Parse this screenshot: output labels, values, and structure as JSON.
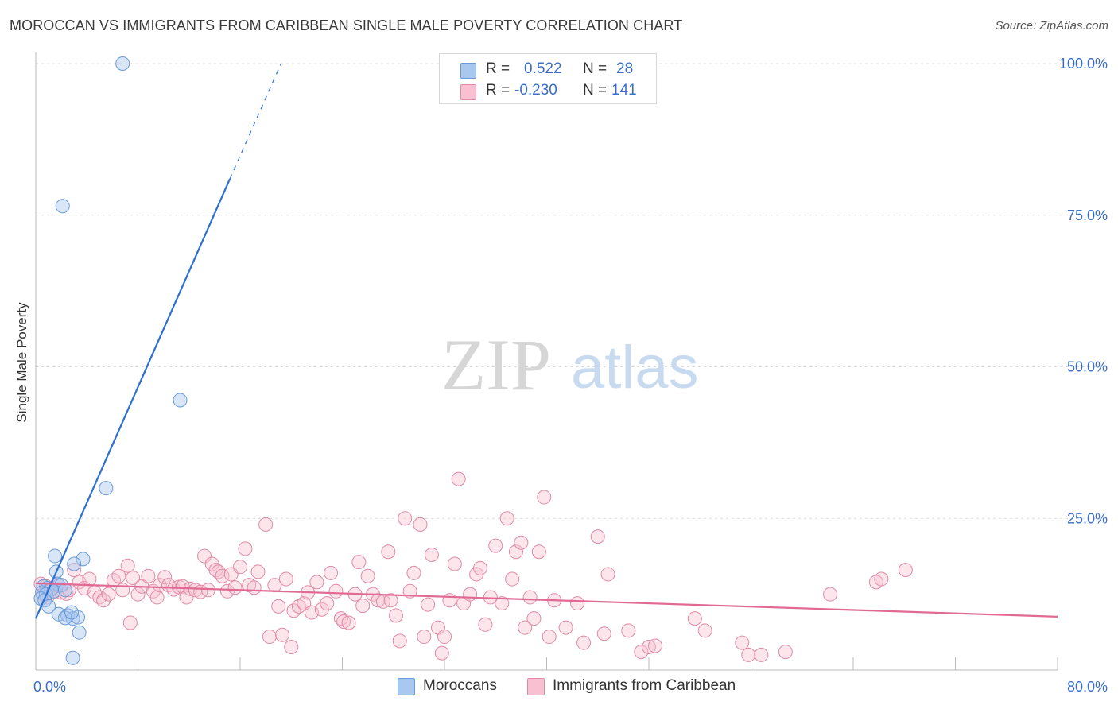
{
  "header": {
    "title": "MOROCCAN VS IMMIGRANTS FROM CARIBBEAN SINGLE MALE POVERTY CORRELATION CHART",
    "source": "Source: ZipAtlas.com"
  },
  "watermark": {
    "part1": "ZIP",
    "part2": "atlas"
  },
  "legend": {
    "rows": [
      {
        "r_label": "R =",
        "r_value": "0.522",
        "n_label": "N =",
        "n_value": "28",
        "color": "#a8c8f0",
        "border": "#6a9ad8"
      },
      {
        "r_label": "R =",
        "r_value": "-0.230",
        "n_label": "N =",
        "n_value": "141",
        "color": "#f8c0d0",
        "border": "#e08aa8"
      }
    ]
  },
  "bottom_legend": {
    "items": [
      {
        "label": "Moroccans",
        "color": "#a8c8f0",
        "border": "#6a9ad8"
      },
      {
        "label": "Immigrants from Caribbean",
        "color": "#f8c0d0",
        "border": "#e08aa8"
      }
    ]
  },
  "chart_data": {
    "type": "scatter",
    "title": "MOROCCAN VS IMMIGRANTS FROM CARIBBEAN SINGLE MALE POVERTY CORRELATION CHART",
    "xlabel": "",
    "ylabel": "Single Male Poverty",
    "xlim": [
      0,
      80
    ],
    "ylim": [
      0,
      100
    ],
    "x_tick_labels": {
      "0": "0.0%",
      "80": "80.0%"
    },
    "y_tick_labels": {
      "25": "25.0%",
      "50": "50.0%",
      "75": "75.0%",
      "100": "100.0%"
    },
    "y_grid": [
      25,
      50,
      75,
      100
    ],
    "x_minor_ticks": [
      8,
      16,
      24,
      32,
      40,
      48,
      56,
      64,
      72,
      80
    ],
    "series": [
      {
        "name": "Moroccans",
        "color": "#6a9ad8",
        "fill": "rgba(168,200,240,0.45)",
        "line_color": "#2f6fd0",
        "trend": {
          "x0": 0,
          "y0": 8.5,
          "x1": 15.2,
          "y1": 81,
          "dashed_to_x": 19.2,
          "dashed_to_y": 100
        },
        "points": [
          [
            6.8,
            100
          ],
          [
            2.1,
            76.5
          ],
          [
            11.3,
            44.5
          ],
          [
            5.5,
            30
          ],
          [
            1.5,
            18.8
          ],
          [
            3.7,
            18.3
          ],
          [
            3.0,
            17.5
          ],
          [
            1.6,
            16.2
          ],
          [
            1.7,
            14.2
          ],
          [
            2.0,
            14.0
          ],
          [
            0.6,
            13.8
          ],
          [
            0.9,
            13.5
          ],
          [
            1.2,
            13.3
          ],
          [
            0.5,
            12.8
          ],
          [
            0.8,
            12.5
          ],
          [
            1.4,
            13.0
          ],
          [
            2.3,
            13.2
          ],
          [
            0.4,
            11.8
          ],
          [
            0.7,
            11.5
          ],
          [
            1.0,
            10.5
          ],
          [
            1.8,
            9.2
          ],
          [
            2.5,
            9.0
          ],
          [
            2.9,
            8.5
          ],
          [
            2.3,
            8.6
          ],
          [
            3.3,
            8.7
          ],
          [
            2.8,
            9.5
          ],
          [
            3.4,
            6.2
          ],
          [
            2.9,
            2.0
          ]
        ]
      },
      {
        "name": "Immigrants from Caribbean",
        "color": "#e08aa8",
        "fill": "rgba(248,192,208,0.4)",
        "line_color": "#e06a94",
        "trend": {
          "x0": 0,
          "y0": 14.3,
          "x1": 80,
          "y1": 8.8
        },
        "points": [
          [
            0.4,
            14.2
          ],
          [
            0.8,
            13.8
          ],
          [
            1.1,
            13.3
          ],
          [
            1.5,
            13.0
          ],
          [
            2.0,
            12.8
          ],
          [
            2.4,
            12.6
          ],
          [
            0.6,
            12.5
          ],
          [
            1.3,
            13.5
          ],
          [
            1.8,
            13.9
          ],
          [
            2.6,
            13.2
          ],
          [
            3.0,
            16.5
          ],
          [
            3.4,
            14.5
          ],
          [
            3.8,
            13.5
          ],
          [
            4.2,
            15.0
          ],
          [
            4.6,
            12.8
          ],
          [
            5.0,
            12.0
          ],
          [
            5.3,
            11.5
          ],
          [
            5.7,
            12.5
          ],
          [
            6.1,
            14.8
          ],
          [
            6.5,
            15.5
          ],
          [
            6.8,
            13.2
          ],
          [
            7.2,
            17.2
          ],
          [
            7.6,
            15.2
          ],
          [
            7.4,
            7.8
          ],
          [
            8.0,
            12.5
          ],
          [
            8.3,
            13.8
          ],
          [
            8.8,
            15.5
          ],
          [
            9.2,
            13.0
          ],
          [
            9.5,
            12.0
          ],
          [
            9.7,
            14.0
          ],
          [
            10.1,
            15.3
          ],
          [
            10.4,
            14.0
          ],
          [
            10.8,
            13.3
          ],
          [
            11.2,
            13.7
          ],
          [
            11.5,
            13.8
          ],
          [
            11.8,
            12.0
          ],
          [
            12.1,
            13.4
          ],
          [
            12.5,
            13.2
          ],
          [
            12.9,
            12.9
          ],
          [
            13.2,
            18.8
          ],
          [
            13.5,
            13.2
          ],
          [
            13.8,
            17.5
          ],
          [
            14.1,
            16.5
          ],
          [
            14.3,
            16.2
          ],
          [
            14.6,
            15.5
          ],
          [
            15.0,
            13.0
          ],
          [
            15.3,
            15.8
          ],
          [
            15.6,
            13.6
          ],
          [
            16.0,
            17.0
          ],
          [
            16.4,
            20.0
          ],
          [
            16.7,
            14.0
          ],
          [
            17.1,
            13.6
          ],
          [
            17.4,
            16.2
          ],
          [
            18.0,
            24.0
          ],
          [
            18.3,
            5.5
          ],
          [
            18.7,
            14.0
          ],
          [
            19.0,
            10.5
          ],
          [
            19.3,
            5.8
          ],
          [
            19.6,
            15.0
          ],
          [
            20.0,
            3.8
          ],
          [
            20.2,
            9.8
          ],
          [
            20.6,
            10.5
          ],
          [
            21.0,
            11.0
          ],
          [
            21.3,
            12.8
          ],
          [
            21.6,
            9.5
          ],
          [
            22.0,
            14.5
          ],
          [
            22.4,
            10.0
          ],
          [
            22.8,
            11.0
          ],
          [
            23.1,
            16.0
          ],
          [
            23.5,
            13.0
          ],
          [
            23.9,
            8.5
          ],
          [
            24.1,
            8.0
          ],
          [
            24.5,
            7.8
          ],
          [
            25.0,
            12.5
          ],
          [
            25.3,
            17.8
          ],
          [
            25.6,
            10.6
          ],
          [
            26.0,
            15.5
          ],
          [
            26.4,
            12.5
          ],
          [
            26.8,
            11.5
          ],
          [
            27.2,
            11.3
          ],
          [
            27.6,
            19.5
          ],
          [
            27.8,
            11.5
          ],
          [
            28.2,
            9.0
          ],
          [
            28.5,
            4.8
          ],
          [
            28.9,
            25.0
          ],
          [
            29.3,
            13.0
          ],
          [
            29.6,
            16.0
          ],
          [
            30.1,
            24.0
          ],
          [
            30.4,
            5.5
          ],
          [
            30.7,
            10.8
          ],
          [
            31.0,
            19.0
          ],
          [
            31.5,
            7.0
          ],
          [
            31.8,
            2.8
          ],
          [
            32.0,
            5.5
          ],
          [
            32.4,
            11.5
          ],
          [
            32.8,
            17.5
          ],
          [
            33.1,
            31.5
          ],
          [
            33.5,
            11.0
          ],
          [
            34.0,
            12.5
          ],
          [
            34.5,
            15.8
          ],
          [
            34.8,
            16.8
          ],
          [
            35.2,
            7.5
          ],
          [
            35.6,
            12.0
          ],
          [
            36.0,
            20.5
          ],
          [
            36.5,
            11.0
          ],
          [
            36.9,
            25.0
          ],
          [
            37.3,
            15.0
          ],
          [
            37.6,
            19.5
          ],
          [
            38.0,
            21.0
          ],
          [
            38.3,
            7.0
          ],
          [
            38.7,
            12.0
          ],
          [
            39.0,
            8.5
          ],
          [
            39.4,
            19.5
          ],
          [
            39.8,
            28.5
          ],
          [
            40.2,
            5.5
          ],
          [
            40.6,
            11.5
          ],
          [
            41.5,
            7.0
          ],
          [
            42.4,
            11.0
          ],
          [
            42.9,
            4.5
          ],
          [
            44.0,
            22.0
          ],
          [
            44.5,
            6.0
          ],
          [
            44.8,
            15.8
          ],
          [
            46.4,
            6.5
          ],
          [
            47.4,
            3.0
          ],
          [
            48.0,
            3.8
          ],
          [
            48.5,
            4.0
          ],
          [
            51.6,
            8.5
          ],
          [
            52.4,
            6.5
          ],
          [
            55.3,
            4.5
          ],
          [
            55.8,
            2.5
          ],
          [
            56.8,
            2.5
          ],
          [
            58.7,
            3.0
          ],
          [
            62.2,
            12.5
          ],
          [
            65.8,
            14.5
          ],
          [
            66.2,
            15.0
          ],
          [
            68.1,
            16.5
          ],
          [
            0.9,
            12.0
          ]
        ]
      }
    ]
  }
}
